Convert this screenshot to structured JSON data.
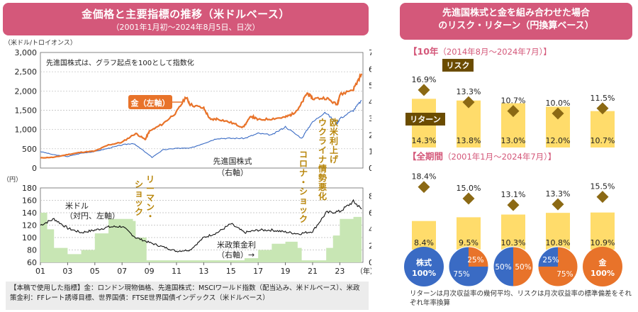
{
  "left": {
    "title": "金価格と主要指標の推移（米ドルベース）",
    "subtitle": "（2001年1月初～2024年8月5日、日次）",
    "top_unit": "（米ドル/トロイオンス）",
    "left_unit_bottom": "（円）",
    "right_unit_bottom": "（%）",
    "x_unit": "（年）",
    "note_in_chart": "先進国株式は、グラフ起点を100として指数化",
    "label_gold": "金（左軸）",
    "label_equity": "先進国株式",
    "label_equity_axis": "（右軸）",
    "label_usd": "米ドル",
    "label_usd_axis": "（対円、左軸）",
    "label_rate": "米政策金利",
    "label_rate_axis": "（右軸）→",
    "annot_lehman": "リーマン・ショック",
    "annot_corona": "コロナ・ショック",
    "annot_rates": "欧米利上げ",
    "annot_ukraine": "ウクライナ情勢悪化",
    "footnote": "【本稿で使用した指標】金：ロンドン現物価格、先進国株式：MSCIワールド指数（配当込み、米ドルベース）、米政策金利：FFレート誘導目標、世界国債：FTSE世界国債インデックス（米ドルベース）",
    "colors": {
      "gold": "#e8732a",
      "equity": "#3a6bc4",
      "usd": "#111111",
      "rate": "#c8e6b4",
      "annot": "#b8860b"
    }
  },
  "right": {
    "title_line1": "先進国株式と金を組み合わせた場合",
    "title_line2": "のリスク・リターン（円換算ベース）",
    "period1_label": "【10年",
    "period1_range": "（2014年8月～2024年7月）】",
    "period2_label": "【全期間",
    "period2_range": "（2001年1月～2024年7月）】",
    "risk_label": "リスク",
    "return_label": "リターン",
    "footnote": "リターンは月次収益率の幾何平均、リスクは月次収益率の標準偏差をそれぞれ年率換算",
    "colors": {
      "bar": "#ffdc6b",
      "marker": "#8b6914",
      "tag": "#6b4c00",
      "equity": "#3a6bc4",
      "gold": "#e8732a"
    }
  },
  "pies": [
    {
      "label_equity": "株式",
      "label_pct": "100%",
      "equity": 100
    },
    {
      "equity_pct": "75%",
      "gold_pct": "25%",
      "equity": 75
    },
    {
      "equity_pct": "50%",
      "gold_pct": "50%",
      "equity": 50
    },
    {
      "equity_pct": "25%",
      "gold_pct": "75%",
      "equity": 25
    },
    {
      "label_gold": "金",
      "label_pct": "100%",
      "equity": 0
    }
  ],
  "chart_data": [
    {
      "type": "line",
      "title": "金価格と主要指標の推移（米ドルベース）",
      "x_ticks": [
        "01",
        "03",
        "05",
        "07",
        "09",
        "11",
        "13",
        "15",
        "17",
        "19",
        "21",
        "23"
      ],
      "left_axis": {
        "ticks": [
          "0",
          "500",
          "1,000",
          "1,500",
          "2,000",
          "2,500",
          "3,000"
        ],
        "ylim": [
          0,
          3000
        ]
      },
      "right_axis": {
        "ticks": [
          "0",
          "100",
          "200",
          "300",
          "400",
          "500",
          "600",
          "700"
        ],
        "ylim": [
          0,
          700
        ]
      },
      "series": [
        {
          "name": "金（左軸）",
          "axis": "left",
          "x": [
            2001,
            2002,
            2003,
            2004,
            2005,
            2006,
            2007,
            2008,
            2008.7,
            2009,
            2010,
            2011,
            2011.7,
            2012,
            2013,
            2013.5,
            2014,
            2015,
            2015.9,
            2016.5,
            2017,
            2018,
            2019,
            2019.5,
            2020,
            2020.6,
            2021,
            2022,
            2022.8,
            2023,
            2024,
            2024.6
          ],
          "values": [
            265,
            280,
            350,
            410,
            440,
            600,
            670,
            900,
            740,
            950,
            1150,
            1450,
            1850,
            1650,
            1550,
            1250,
            1280,
            1180,
            1060,
            1350,
            1250,
            1280,
            1320,
            1400,
            1550,
            1950,
            1800,
            1820,
            1640,
            1900,
            2050,
            2450
          ]
        },
        {
          "name": "先進国株式（右軸）",
          "axis": "right",
          "x": [
            2001,
            2002,
            2003,
            2004,
            2005,
            2006,
            2007,
            2007.8,
            2008.5,
            2009.2,
            2010,
            2011,
            2012,
            2013,
            2014,
            2015,
            2016,
            2017,
            2018,
            2019,
            2020.2,
            2020.9,
            2021.9,
            2022.8,
            2023,
            2024,
            2024.6
          ],
          "values": [
            100,
            80,
            70,
            90,
            100,
            120,
            140,
            150,
            110,
            65,
            110,
            120,
            120,
            150,
            180,
            180,
            180,
            210,
            200,
            250,
            180,
            270,
            340,
            270,
            300,
            350,
            410
          ]
        },
        {
          "name": "米ドル（対円、左軸）",
          "axis": "left2",
          "x": [
            2001,
            2002,
            2003,
            2004,
            2005,
            2006,
            2007,
            2008,
            2009,
            2010,
            2011,
            2012,
            2013,
            2014,
            2015,
            2016,
            2017,
            2018,
            2019,
            2020,
            2021,
            2022,
            2023,
            2024,
            2024.6
          ],
          "values": [
            120,
            130,
            115,
            108,
            112,
            117,
            118,
            100,
            92,
            85,
            78,
            80,
            100,
            108,
            122,
            108,
            112,
            112,
            109,
            106,
            110,
            140,
            142,
            158,
            146
          ]
        },
        {
          "name": "米政策金利（右軸）",
          "axis": "right2",
          "x": [
            2001,
            2001.5,
            2002,
            2003,
            2004,
            2005,
            2006,
            2007,
            2007.8,
            2008,
            2008.8,
            2009,
            2010,
            2015,
            2016,
            2017,
            2018,
            2019,
            2019.9,
            2020.2,
            2021,
            2022,
            2022.5,
            2023,
            2024,
            2024.6
          ],
          "values": [
            6,
            4,
            1.75,
            1,
            1.5,
            3.5,
            5.25,
            5.25,
            5,
            3,
            0.25,
            0.25,
            0.25,
            0.25,
            0.5,
            1.5,
            2.25,
            2.5,
            1.75,
            0.25,
            0.25,
            1.75,
            3.25,
            5.25,
            5.5,
            5.5
          ]
        }
      ],
      "bottom_left_axis": {
        "ticks": [
          "60",
          "80",
          "100",
          "120",
          "140",
          "160",
          "180"
        ],
        "ylim": [
          60,
          180
        ]
      },
      "bottom_right_axis": {
        "ticks": [
          "0",
          "2",
          "4",
          "6",
          "8"
        ],
        "ylim": [
          0,
          9
        ]
      }
    },
    {
      "type": "bar",
      "title": "【10年（2014年8月～2024年7月）】",
      "categories": [
        "株式100%",
        "株式75%・金25%",
        "株式50%・金50%",
        "株式25%・金75%",
        "金100%"
      ],
      "series": [
        {
          "name": "リターン",
          "values": [
            14.3,
            13.8,
            13.0,
            12.0,
            10.7
          ]
        },
        {
          "name": "リスク",
          "values": [
            16.9,
            13.3,
            10.7,
            10.0,
            11.5
          ]
        }
      ]
    },
    {
      "type": "bar",
      "title": "【全期間（2001年1月～2024年7月）】",
      "categories": [
        "株式100%",
        "株式75%・金25%",
        "株式50%・金50%",
        "株式25%・金75%",
        "金100%"
      ],
      "series": [
        {
          "name": "リターン",
          "values": [
            8.4,
            9.5,
            10.3,
            10.8,
            10.9
          ]
        },
        {
          "name": "リスク",
          "values": [
            18.4,
            15.0,
            13.1,
            13.3,
            15.5
          ]
        }
      ]
    }
  ]
}
